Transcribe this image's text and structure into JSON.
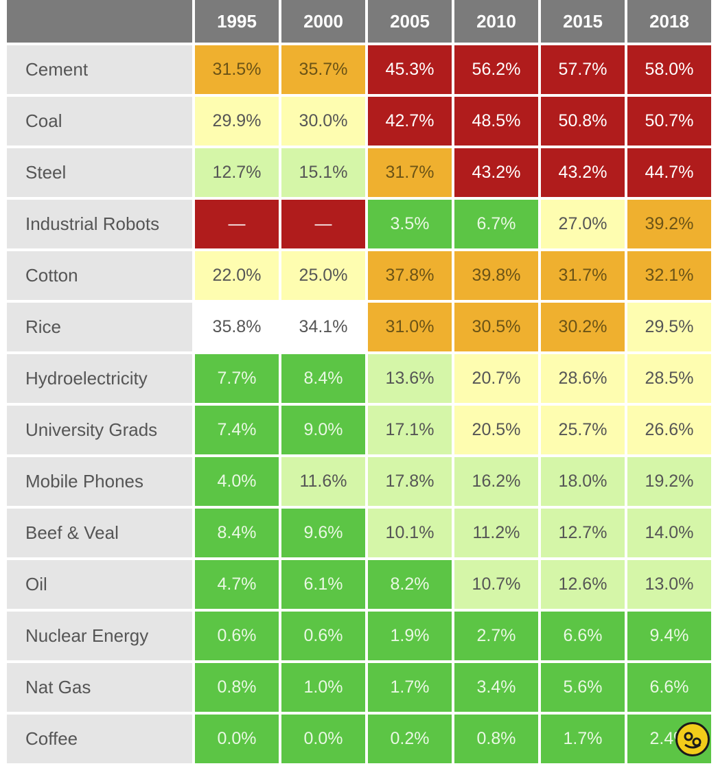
{
  "chart_data": {
    "type": "heatmap",
    "columns": [
      "1995",
      "2000",
      "2005",
      "2010",
      "2015",
      "2018"
    ],
    "rows": [
      {
        "label": "Cement",
        "values": [
          "31.5%",
          "35.7%",
          "45.3%",
          "56.2%",
          "57.7%",
          "58.0%"
        ],
        "colors": [
          "#efb02f",
          "#efb02f",
          "#b01c1c",
          "#b01c1c",
          "#b01c1c",
          "#b01c1c"
        ]
      },
      {
        "label": "Coal",
        "values": [
          "29.9%",
          "30.0%",
          "42.7%",
          "48.5%",
          "50.8%",
          "50.7%"
        ],
        "colors": [
          "#fefdb0",
          "#fefdb0",
          "#b01c1c",
          "#b01c1c",
          "#b01c1c",
          "#b01c1c"
        ]
      },
      {
        "label": "Steel",
        "values": [
          "12.7%",
          "15.1%",
          "31.7%",
          "43.2%",
          "43.2%",
          "44.7%"
        ],
        "colors": [
          "#d5f6a8",
          "#d5f6a8",
          "#efb02f",
          "#b01c1c",
          "#b01c1c",
          "#b01c1c"
        ]
      },
      {
        "label": "Industrial Robots",
        "values": [
          "—",
          "—",
          "3.5%",
          "6.7%",
          "27.0%",
          "39.2%"
        ],
        "colors": [
          "#b01c1c",
          "#b01c1c",
          "#5cc545",
          "#5cc545",
          "#fefdb0",
          "#efb02f"
        ]
      },
      {
        "label": "Cotton",
        "values": [
          "22.0%",
          "25.0%",
          "37.8%",
          "39.8%",
          "31.7%",
          "32.1%"
        ],
        "colors": [
          "#fefdb0",
          "#fefdb0",
          "#efb02f",
          "#efb02f",
          "#efb02f",
          "#efb02f"
        ]
      },
      {
        "label": "Rice",
        "values": [
          "35.8%",
          "34.1%",
          "31.0%",
          "30.5%",
          "30.2%",
          "29.5%"
        ],
        "colors": [
          "#ffffff",
          "#ffffff",
          "#efb02f",
          "#efb02f",
          "#efb02f",
          "#fefdb0"
        ]
      },
      {
        "label": "Hydroelectricity",
        "values": [
          "7.7%",
          "8.4%",
          "13.6%",
          "20.7%",
          "28.6%",
          "28.5%"
        ],
        "colors": [
          "#5cc545",
          "#5cc545",
          "#d5f6a8",
          "#fefdb0",
          "#fefdb0",
          "#fefdb0"
        ]
      },
      {
        "label": "University Grads",
        "values": [
          "7.4%",
          "9.0%",
          "17.1%",
          "20.5%",
          "25.7%",
          "26.6%"
        ],
        "colors": [
          "#5cc545",
          "#5cc545",
          "#d5f6a8",
          "#fefdb0",
          "#fefdb0",
          "#fefdb0"
        ]
      },
      {
        "label": "Mobile Phones",
        "values": [
          "4.0%",
          "11.6%",
          "17.8%",
          "16.2%",
          "18.0%",
          "19.2%"
        ],
        "colors": [
          "#5cc545",
          "#d5f6a8",
          "#d5f6a8",
          "#d5f6a8",
          "#d5f6a8",
          "#d5f6a8"
        ]
      },
      {
        "label": "Beef & Veal",
        "values": [
          "8.4%",
          "9.6%",
          "10.1%",
          "11.2%",
          "12.7%",
          "14.0%"
        ],
        "colors": [
          "#5cc545",
          "#5cc545",
          "#d5f6a8",
          "#d5f6a8",
          "#d5f6a8",
          "#d5f6a8"
        ]
      },
      {
        "label": "Oil",
        "values": [
          "4.7%",
          "6.1%",
          "8.2%",
          "10.7%",
          "12.6%",
          "13.0%"
        ],
        "colors": [
          "#5cc545",
          "#5cc545",
          "#5cc545",
          "#d5f6a8",
          "#d5f6a8",
          "#d5f6a8"
        ]
      },
      {
        "label": "Nuclear Energy",
        "values": [
          "0.6%",
          "0.6%",
          "1.9%",
          "2.7%",
          "6.6%",
          "9.4%"
        ],
        "colors": [
          "#5cc545",
          "#5cc545",
          "#5cc545",
          "#5cc545",
          "#5cc545",
          "#5cc545"
        ]
      },
      {
        "label": "Nat Gas",
        "values": [
          "0.8%",
          "1.0%",
          "1.7%",
          "3.4%",
          "5.6%",
          "6.6%"
        ],
        "colors": [
          "#5cc545",
          "#5cc545",
          "#5cc545",
          "#5cc545",
          "#5cc545",
          "#5cc545"
        ]
      },
      {
        "label": "Coffee",
        "values": [
          "0.0%",
          "0.0%",
          "0.2%",
          "0.8%",
          "1.7%",
          "2.4%"
        ],
        "colors": [
          "#5cc545",
          "#5cc545",
          "#5cc545",
          "#5cc545",
          "#5cc545",
          "#5cc545"
        ]
      }
    ],
    "text_colors": {
      "#b01c1c": "#ffffff",
      "#efb02f": "#6b5316",
      "#5cc545": "#e9f8e3",
      "#fefdb0": "#555555",
      "#d5f6a8": "#555555",
      "#ffffff": "#555555"
    }
  },
  "watermark": {
    "icon": "smiley-badge-icon"
  }
}
